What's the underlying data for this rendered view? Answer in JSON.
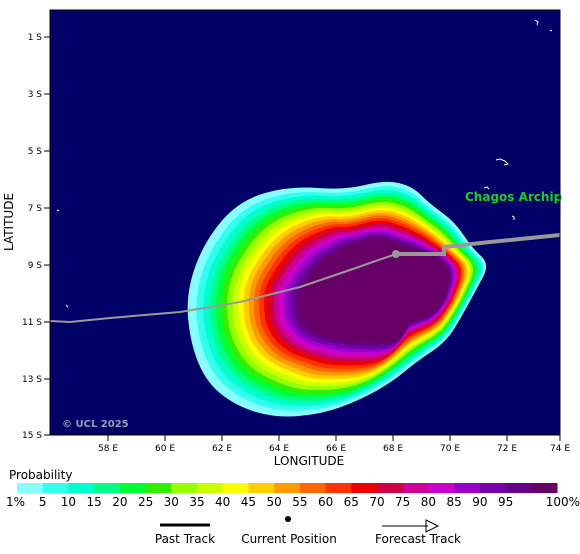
{
  "map": {
    "copyright": "© UCL 2025",
    "place_label": "Chagos Archip",
    "xlabel": "LONGITUDE",
    "ylabel": "LATITUDE",
    "lon_ticks": [
      "58 E",
      "60 E",
      "62 E",
      "64 E",
      "66 E",
      "68 E",
      "70 E",
      "72 E",
      "74 E"
    ],
    "lat_ticks": [
      "1 S",
      "3 S",
      "5 S",
      "7 S",
      "9 S",
      "11 S",
      "13 S",
      "15 S"
    ],
    "colors": {
      "ocean": "#000066",
      "place_label": "#22cc22"
    }
  },
  "legend": {
    "title": "Probability",
    "labels": [
      "1%",
      "5",
      "10",
      "15",
      "20",
      "25",
      "30",
      "35",
      "40",
      "45",
      "50",
      "55",
      "60",
      "65",
      "70",
      "75",
      "80",
      "85",
      "90",
      "95",
      "100%"
    ],
    "colors": [
      "#88ffff",
      "#33ffee",
      "#00ffcc",
      "#00ff88",
      "#00ff33",
      "#33ee00",
      "#99ff00",
      "#ccff00",
      "#ffff00",
      "#ffcc00",
      "#ff9900",
      "#ff6600",
      "#ff3300",
      "#ee0000",
      "#cc0044",
      "#cc0099",
      "#cc00cc",
      "#9900cc",
      "#7700aa",
      "#660088",
      "#660066"
    ],
    "keys": {
      "past": "Past Track",
      "current": "Current Position",
      "forecast": "Forecast Track"
    }
  }
}
